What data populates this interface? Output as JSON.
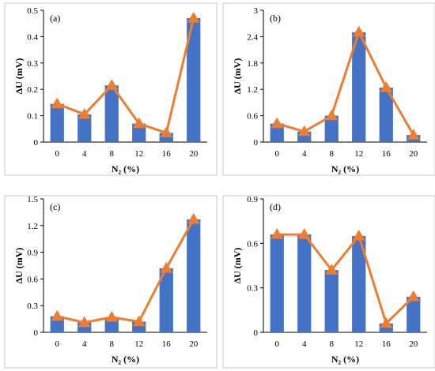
{
  "colors": {
    "bar": "#4472C4",
    "line": "#ED7D31"
  },
  "chart_data": [
    {
      "type": "bar",
      "panel": "(a)",
      "categories": [
        "0",
        "4",
        "8",
        "12",
        "16",
        "20"
      ],
      "values": [
        0.145,
        0.105,
        0.215,
        0.07,
        0.035,
        0.47
      ],
      "line_values": [
        0.145,
        0.105,
        0.215,
        0.07,
        0.035,
        0.47
      ],
      "ylim": [
        0,
        0.5
      ],
      "yticks": [
        "0",
        "0.1",
        "0.2",
        "0.3",
        "0.4",
        "0.5"
      ],
      "ytick_values": [
        0,
        0.1,
        0.2,
        0.3,
        0.4,
        0.5
      ],
      "ylabel": "ΔU (mV)",
      "xlabel": "N₂ (%)",
      "grid": false
    },
    {
      "type": "bar",
      "panel": "(b)",
      "categories": [
        "0",
        "4",
        "8",
        "12",
        "16",
        "20"
      ],
      "values": [
        0.42,
        0.24,
        0.6,
        2.5,
        1.24,
        0.16
      ],
      "line_values": [
        0.42,
        0.24,
        0.6,
        2.5,
        1.24,
        0.16
      ],
      "ylim": [
        0,
        3
      ],
      "yticks": [
        "0",
        "0.6",
        "1.2",
        "1.8",
        "2.4",
        "3"
      ],
      "ytick_values": [
        0,
        0.6,
        1.2,
        1.8,
        2.4,
        3
      ],
      "ylabel": "ΔU (mV)",
      "xlabel": "N₂ (%)",
      "grid": false
    },
    {
      "type": "bar",
      "panel": "(c)",
      "categories": [
        "0",
        "4",
        "8",
        "12",
        "16",
        "20"
      ],
      "values": [
        0.18,
        0.11,
        0.17,
        0.12,
        0.72,
        1.27
      ],
      "line_values": [
        0.18,
        0.11,
        0.17,
        0.12,
        0.72,
        1.27
      ],
      "ylim": [
        0,
        1.5
      ],
      "yticks": [
        "0",
        "0.3",
        "0.6",
        "0.9",
        "1.2",
        "1.5"
      ],
      "ytick_values": [
        0,
        0.3,
        0.6,
        0.9,
        1.2,
        1.5
      ],
      "ylabel": "ΔU (mV)",
      "xlabel": "N₂ (%)",
      "grid": false
    },
    {
      "type": "bar",
      "panel": "(d)",
      "categories": [
        "0",
        "4",
        "8",
        "12",
        "16",
        "20"
      ],
      "values": [
        0.66,
        0.66,
        0.42,
        0.65,
        0.06,
        0.24
      ],
      "line_values": [
        0.66,
        0.66,
        0.42,
        0.65,
        0.06,
        0.24
      ],
      "ylim": [
        0,
        0.9
      ],
      "yticks": [
        "0",
        "0.3",
        "0.6",
        "0.9"
      ],
      "ytick_values": [
        0,
        0.3,
        0.6,
        0.9
      ],
      "ylabel": "ΔU (mV)",
      "xlabel": "N₂ (%)",
      "grid": false
    }
  ]
}
